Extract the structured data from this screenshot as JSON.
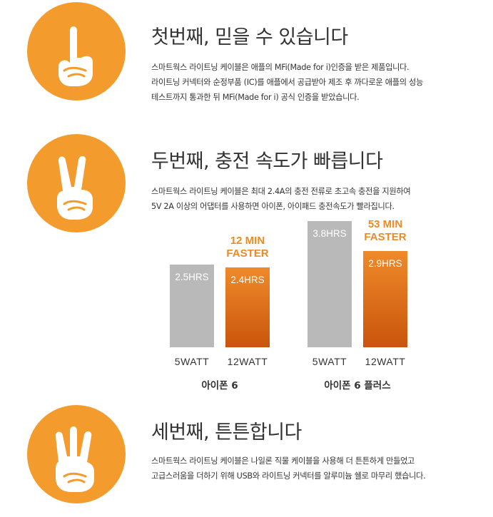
{
  "sections": [
    {
      "title": "첫번째, 믿을 수 있습니다",
      "icon": "one-finger-hand-icon",
      "body": [
        "스마트웍스 라이트닝 케이블은 애플의 MFi(Made for i)인증을 받은 제품입니다.",
        "라이트닝 커넥터와 순정부품 (IC)를 애플에서 공급받아 제조 후 까다로운 애플의 성능",
        "테스트까지 통과한 뒤 MFi(Made for i) 공식 인증을 받았습니다."
      ]
    },
    {
      "title": "두번째, 충전 속도가 빠릅니다",
      "icon": "two-finger-hand-icon",
      "body": [
        "스마트웍스 라이트닝 케이블은 최대 2.4A의 충전 전류로 초고속 충전을 지원하여",
        "5V 2A 이상의 어댑터를 사용하면 아이폰, 아이패드 충전속도가 빨라집니다."
      ]
    },
    {
      "title": "세번째, 튼튼합니다",
      "icon": "three-finger-hand-icon",
      "body": [
        "스마트웍스 라이트닝 케이블은 나일론 직물 케이블을 사용해 더 튼튼하게 만들었고",
        "고급스러움을 더하기 위해 USB와 라이트닝 커넥터를 알루미늄 쉘로 마무리 했습니다."
      ]
    }
  ],
  "colors": {
    "accent": "#f39c2d",
    "bar_gray": "#b9b9b9",
    "bar_orange": "#e0701a",
    "faster_text": "#ec8a24"
  },
  "chart_data": {
    "type": "bar",
    "groups": [
      {
        "name": "아이폰 6",
        "bars": [
          {
            "category": "5WATT",
            "value": 2.5,
            "label": "2.5HRS",
            "color": "gray"
          },
          {
            "category": "12WATT",
            "value": 2.4,
            "label": "2.4HRS",
            "color": "orange",
            "annotation": [
              "12 MIN",
              "FASTER"
            ]
          }
        ]
      },
      {
        "name": "아이폰 6 플러스",
        "bars": [
          {
            "category": "5WATT",
            "value": 3.8,
            "label": "3.8HRS",
            "color": "gray"
          },
          {
            "category": "12WATT",
            "value": 2.9,
            "label": "2.9HRS",
            "color": "orange",
            "annotation": [
              "53 MIN",
              "FASTER"
            ]
          }
        ]
      }
    ]
  }
}
